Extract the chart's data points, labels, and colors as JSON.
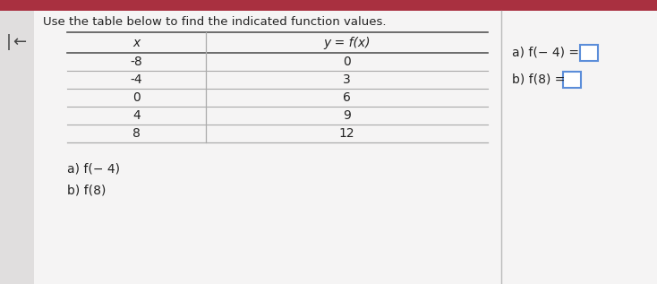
{
  "title": "Use the table below to find the indicated function values.",
  "title_fontsize": 9.5,
  "col1_header": "x",
  "col2_header": "y = f(x)",
  "table_data": [
    [
      "-8",
      "0"
    ],
    [
      "-4",
      "3"
    ],
    [
      "0",
      "6"
    ],
    [
      "4",
      "9"
    ],
    [
      "8",
      "12"
    ]
  ],
  "bottom_lines": [
    "a) f(− 4)",
    "b) f(8)"
  ],
  "right_line1": "a) f(− 4) =",
  "right_line2": "b) f(8) =",
  "page_bg": "#e8e8e8",
  "panel_bg": "#f5f4f4",
  "top_bar_color": "#a93040",
  "left_stripe_color": "#e0dede",
  "font_color": "#222222",
  "box_color": "#5b8dd9",
  "table_line_color": "#aaaaaa",
  "header_line_color": "#555555",
  "divider_line_color": "#bbbbbb"
}
